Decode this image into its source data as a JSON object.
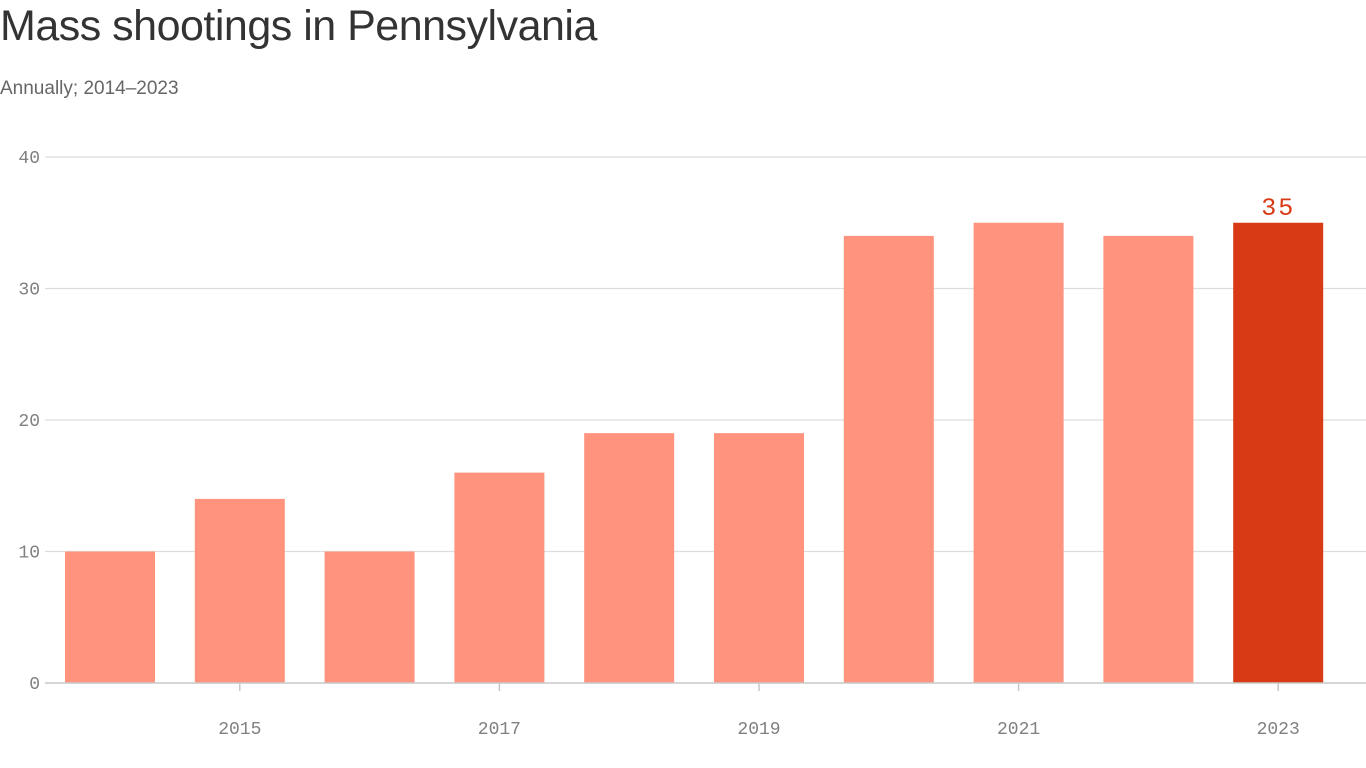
{
  "colors": {
    "bar": "#ff937d",
    "highlight": "#d93a16",
    "grid": "#dddddd",
    "axis": "#c8c8c8",
    "tick_text": "#808080"
  },
  "chart_data": {
    "type": "bar",
    "title": "Mass shootings in Pennsylvania",
    "subtitle": "Annually; 2014–2023",
    "xlabel": "",
    "ylabel": "",
    "categories": [
      2014,
      2015,
      2016,
      2017,
      2018,
      2019,
      2020,
      2021,
      2022,
      2023
    ],
    "values": [
      10,
      14,
      10,
      16,
      19,
      19,
      34,
      35,
      34,
      35
    ],
    "x_tick_labels": [
      "2015",
      "2017",
      "2019",
      "2021",
      "2023"
    ],
    "y_ticks": [
      0,
      10,
      20,
      30,
      40
    ],
    "ylim": [
      0,
      40
    ],
    "grid": true,
    "highlight": {
      "category": 2023,
      "label": "35"
    }
  }
}
